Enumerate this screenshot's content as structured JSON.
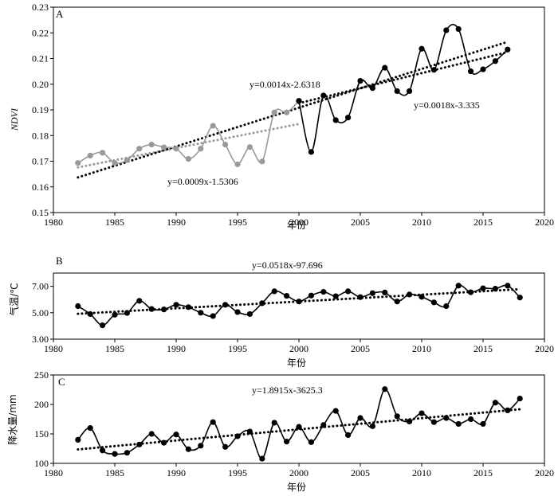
{
  "chart_data": [
    {
      "type": "line",
      "panel_label": "A",
      "xlabel": "年份",
      "ylabel": "NDVI",
      "xlim": [
        1980,
        2020
      ],
      "ylim": [
        0.15,
        0.23
      ],
      "xticks": [
        1980,
        1985,
        1990,
        1995,
        2000,
        2005,
        2010,
        2015,
        2020
      ],
      "yticks": [
        "0.15",
        "0.16",
        "0.17",
        "0.18",
        "0.19",
        "0.20",
        "0.21",
        "0.22",
        "0.23"
      ],
      "series": [
        {
          "color": "#999999",
          "x": [
            1982,
            1983,
            1984,
            1985,
            1986,
            1987,
            1988,
            1989,
            1990,
            1991,
            1992,
            1993,
            1994,
            1995,
            1996,
            1997,
            1998,
            1999,
            2000
          ],
          "values": [
            0.1693,
            0.1722,
            0.1733,
            0.1693,
            0.1704,
            0.1749,
            0.1765,
            0.1754,
            0.1749,
            0.1709,
            0.1749,
            0.1838,
            0.1765,
            0.1688,
            0.1755,
            0.1699,
            0.189,
            0.189,
            0.1935
          ]
        },
        {
          "color": "#000000",
          "x": [
            2000,
            2001,
            2002,
            2003,
            2004,
            2005,
            2006,
            2007,
            2008,
            2009,
            2010,
            2011,
            2012,
            2013,
            2014,
            2015,
            2016,
            2017
          ],
          "values": [
            0.1935,
            0.1736,
            0.1956,
            0.186,
            0.187,
            0.2013,
            0.1985,
            0.2064,
            0.1973,
            0.1973,
            0.2138,
            0.2056,
            0.221,
            0.2215,
            0.205,
            0.2058,
            0.209,
            0.2135
          ]
        }
      ],
      "trendlines": [
        {
          "equation": "y=0.0009x-1.5306",
          "color": "#999999",
          "x": [
            1982,
            2000
          ],
          "y": [
            0.1676,
            0.1845
          ]
        },
        {
          "equation": "y=0.0014x-2.6318",
          "color": "#000000",
          "x": [
            1982,
            2017
          ],
          "y": [
            0.1637,
            0.2165
          ]
        },
        {
          "equation": "y=0.0018x-3.335",
          "color": "#000000",
          "x": [
            2000,
            2017
          ],
          "y": [
            0.1926,
            0.2125
          ]
        }
      ]
    },
    {
      "type": "line",
      "panel_label": "B",
      "xlabel": "年份",
      "ylabel": "气温/℃",
      "xlim": [
        1980,
        2020
      ],
      "ylim": [
        3.0,
        8.0
      ],
      "xticks": [
        1980,
        1985,
        1990,
        1995,
        2000,
        2005,
        2010,
        2015,
        2020
      ],
      "yticks": [
        "3.00",
        "5.00",
        "7.00"
      ],
      "series": [
        {
          "color": "#000000",
          "x": [
            1982,
            1983,
            1984,
            1985,
            1986,
            1987,
            1988,
            1989,
            1990,
            1991,
            1992,
            1993,
            1994,
            1995,
            1996,
            1997,
            1998,
            1999,
            2000,
            2001,
            2002,
            2003,
            2004,
            2005,
            2006,
            2007,
            2008,
            2009,
            2010,
            2011,
            2012,
            2013,
            2014,
            2015,
            2016,
            2017,
            2018
          ],
          "values": [
            5.5,
            4.9,
            4.05,
            4.85,
            4.98,
            5.9,
            5.28,
            5.25,
            5.6,
            5.42,
            5.0,
            4.75,
            5.6,
            5.05,
            4.9,
            5.72,
            6.62,
            6.28,
            5.85,
            6.3,
            6.58,
            6.25,
            6.62,
            6.18,
            6.48,
            6.53,
            5.85,
            6.38,
            6.2,
            5.78,
            5.5,
            7.05,
            6.55,
            6.85,
            6.82,
            7.05,
            6.15
          ]
        }
      ],
      "trendlines": [
        {
          "equation": "y=0.0518x-97.696",
          "color": "#000000",
          "x": [
            1982,
            2018
          ],
          "y": [
            4.92,
            6.78
          ]
        }
      ]
    },
    {
      "type": "line",
      "panel_label": "C",
      "xlabel": "年份",
      "ylabel": "降水量/mm",
      "xlim": [
        1980,
        2020
      ],
      "ylim": [
        100,
        250
      ],
      "xticks": [
        1980,
        1985,
        1990,
        1995,
        2000,
        2005,
        2010,
        2015,
        2020
      ],
      "yticks": [
        "100",
        "150",
        "200",
        "250"
      ],
      "series": [
        {
          "color": "#000000",
          "x": [
            1982,
            1983,
            1984,
            1985,
            1986,
            1987,
            1988,
            1989,
            1990,
            1991,
            1992,
            1993,
            1994,
            1995,
            1996,
            1997,
            1998,
            1999,
            2000,
            2001,
            2002,
            2003,
            2004,
            2005,
            2006,
            2007,
            2008,
            2009,
            2010,
            2011,
            2012,
            2013,
            2014,
            2015,
            2016,
            2017,
            2018
          ],
          "values": [
            140,
            160,
            122,
            116,
            118,
            132,
            150,
            135,
            149,
            124,
            130,
            170,
            128,
            146,
            154,
            108,
            169,
            137,
            162,
            136,
            165,
            189,
            148,
            177,
            163,
            226,
            180,
            171,
            185,
            170,
            177,
            167,
            175,
            167,
            203,
            190,
            210
          ]
        }
      ],
      "trendlines": [
        {
          "equation": "y=1.8915x-3625.3",
          "color": "#000000",
          "x": [
            1982,
            2018
          ],
          "y": [
            123.7,
            191.8
          ]
        }
      ]
    }
  ]
}
